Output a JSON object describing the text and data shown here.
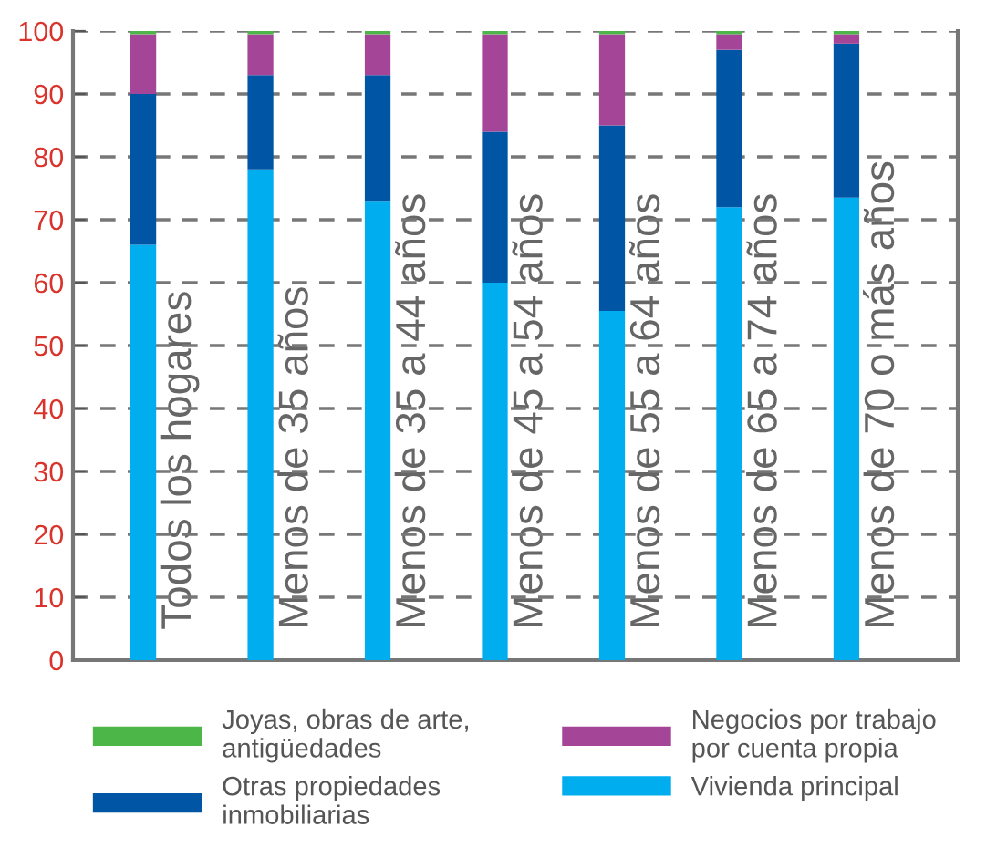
{
  "chart_data": {
    "type": "bar",
    "stacked": true,
    "categories": [
      "Todos los hogares",
      "Menos de 35 años",
      "Menos de 35 a 44 años",
      "Menos de 45 a 54 años",
      "Menos de 55 a 64 años",
      "Menos de 65 a 74 años",
      "Menos de 70 o más años"
    ],
    "series": [
      {
        "name": "Vivienda principal",
        "color": "#00aeef",
        "values": [
          66,
          78,
          73,
          60,
          55.5,
          72,
          73.5
        ]
      },
      {
        "name": "Otras propiedades\ninmobiliarias",
        "color": "#0055a4",
        "values": [
          24,
          15,
          20,
          24,
          29.5,
          25,
          24.5
        ]
      },
      {
        "name": "Negocios por trabajo\npor cuenta propia",
        "color": "#a54597",
        "values": [
          9.5,
          6.5,
          6.5,
          15.5,
          14.5,
          2.5,
          1.5
        ]
      },
      {
        "name": "Joyas, obras de arte,\nantigüedades",
        "color": "#4cb748",
        "values": [
          0.5,
          0.5,
          0.5,
          0.5,
          0.5,
          0.5,
          0.5
        ]
      }
    ],
    "ylim": [
      0,
      100
    ],
    "yticks": [
      0,
      10,
      20,
      30,
      40,
      50,
      60,
      70,
      80,
      90,
      100
    ],
    "grid": "y",
    "legend": "bottom"
  }
}
